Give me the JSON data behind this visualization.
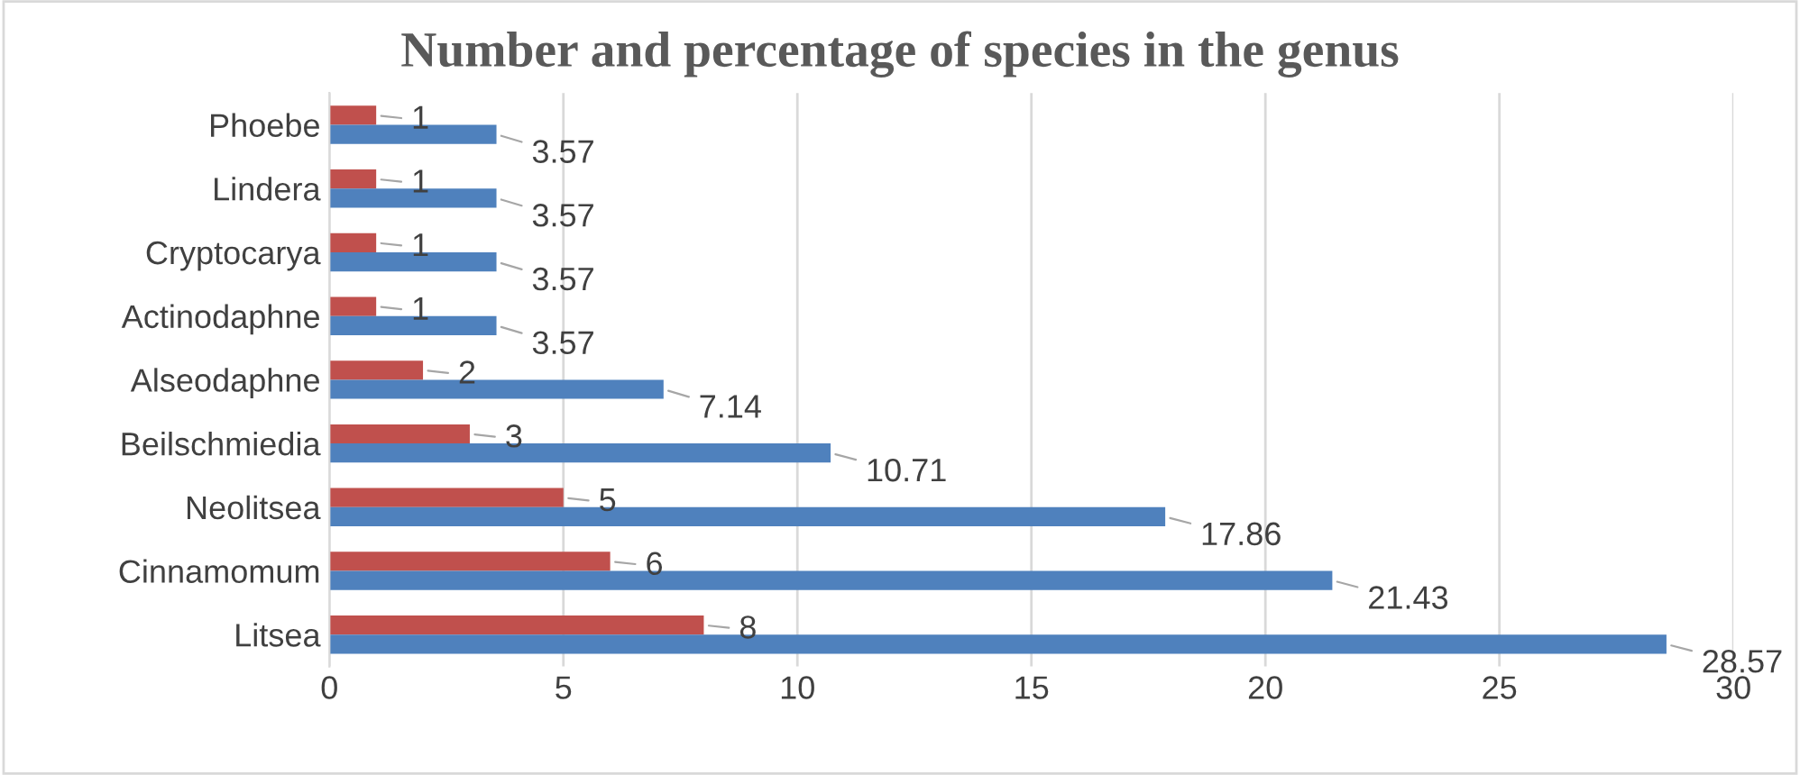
{
  "chart_data": {
    "type": "bar",
    "orientation": "horizontal",
    "title": "Number and percentage of species in the genus",
    "categories": [
      "Phoebe",
      "Lindera",
      "Cryptocarya",
      "Actinodaphne",
      "Alseodaphne",
      "Beilschmiedia",
      "Neolitsea",
      "Cinnamomum",
      "Litsea"
    ],
    "series": [
      {
        "color": "#c0504d",
        "values": [
          1,
          1,
          1,
          1,
          2,
          3,
          5,
          6,
          8
        ]
      },
      {
        "color": "#4f81bd",
        "values": [
          3.57,
          3.57,
          3.57,
          3.57,
          7.14,
          10.71,
          17.86,
          21.43,
          28.57
        ]
      }
    ],
    "xlim": [
      0,
      30
    ],
    "xticks": [
      0,
      5,
      10,
      15,
      20,
      25,
      30
    ],
    "grid": "x",
    "data_labels": true
  }
}
